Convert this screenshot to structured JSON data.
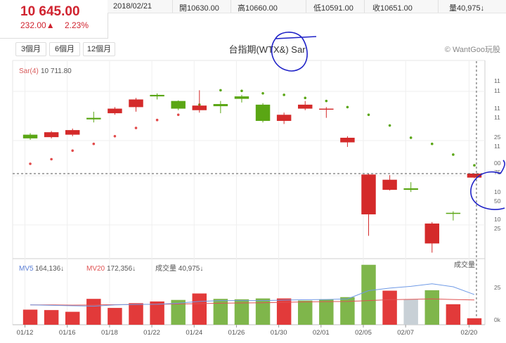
{
  "quote": {
    "price": "10 645.00",
    "change": "232.00▲",
    "change_pct": "2.23%",
    "date": "2018/02/21",
    "open": "開10630.00",
    "high": "高10660.00",
    "low": "低10591.00",
    "close": "收10651.00",
    "volume": "量40,975↓"
  },
  "tabs": [
    {
      "label": "3個月"
    },
    {
      "label": "6個月"
    },
    {
      "label": "12個月"
    }
  ],
  "chart_title": "台指期(WTX&) Sar",
  "brand": "© WantGoo玩股",
  "colors": {
    "up": "#d42a2a",
    "down": "#5aa614",
    "volume_up": "#e23a3a",
    "volume_down": "#7fb64b",
    "volume_neutral": "#c8d0d6",
    "ma5": "#6f9ae6",
    "ma20": "#e05353"
  },
  "chart_data": {
    "type": "candlestick",
    "sar_label": "Sar(4)",
    "sar_value": "10 711.80",
    "volume_labels": {
      "ma5_name": "MV5",
      "ma5": "164,136↓",
      "ma20_name": "MV20",
      "ma20": "172,356↓",
      "vol": "成交量 40,975↓",
      "panel_title": "成交量"
    },
    "x_labels": [
      "01/12",
      "01/16",
      "01/18",
      "01/22",
      "01/24",
      "01/26",
      "01/30",
      "02/01",
      "02/05",
      "02/07",
      "02/20"
    ],
    "price_axis_labels": [
      "11",
      "11",
      "11",
      "11",
      "25",
      "11",
      "00",
      "75",
      "10",
      "50",
      "10",
      "25"
    ],
    "volume_axis_labels": [
      "25",
      "0k"
    ],
    "candles": [
      {
        "o": 11020,
        "c": 11008,
        "h": 11025,
        "l": 11003
      },
      {
        "o": 11012,
        "c": 11028,
        "h": 11032,
        "l": 11008
      },
      {
        "o": 11020,
        "c": 11035,
        "h": 11040,
        "l": 11015
      },
      {
        "o": 11075,
        "c": 11070,
        "h": 11095,
        "l": 11060
      },
      {
        "o": 11090,
        "c": 11105,
        "h": 11110,
        "l": 11085
      },
      {
        "o": 11110,
        "c": 11135,
        "h": 11140,
        "l": 11095
      },
      {
        "o": 11150,
        "c": 11145,
        "h": 11155,
        "l": 11135
      },
      {
        "o": 11130,
        "c": 11105,
        "h": 11132,
        "l": 11100
      },
      {
        "o": 11100,
        "c": 11115,
        "h": 11165,
        "l": 11092
      },
      {
        "o": 11120,
        "c": 11113,
        "h": 11130,
        "l": 11090
      },
      {
        "o": 11145,
        "c": 11137,
        "h": 11150,
        "l": 11125
      },
      {
        "o": 11118,
        "c": 11065,
        "h": 11123,
        "l": 11060
      },
      {
        "o": 11065,
        "c": 11085,
        "h": 11092,
        "l": 11055
      },
      {
        "o": 11105,
        "c": 11118,
        "h": 11130,
        "l": 11100
      },
      {
        "o": 11105,
        "c": 11105,
        "h": 11110,
        "l": 11075
      },
      {
        "o": 10995,
        "c": 11010,
        "h": 11015,
        "l": 10980
      },
      {
        "o": 10760,
        "c": 10890,
        "h": 10892,
        "l": 10690
      },
      {
        "o": 10840,
        "c": 10873,
        "h": 10888,
        "l": 10838
      },
      {
        "o": 10845,
        "c": 10840,
        "h": 10865,
        "l": 10833
      },
      {
        "o": 10665,
        "c": 10730,
        "h": 10735,
        "l": 10635
      },
      {
        "o": 10765,
        "c": 10762,
        "h": 10770,
        "l": 10740
      },
      {
        "o": 10880,
        "c": 10893,
        "h": 10893,
        "l": 10878
      }
    ],
    "sar": [
      10925,
      10940,
      10968,
      10990,
      11015,
      11042,
      11068,
      11085,
      11118,
      11165,
      11163,
      11155,
      11150,
      11140,
      11130,
      11110,
      11085,
      11050,
      11010,
      10990,
      10955,
      10920
    ],
    "volume": [
      {
        "v": 70,
        "d": "up"
      },
      {
        "v": 68,
        "d": "up"
      },
      {
        "v": 60,
        "d": "up"
      },
      {
        "v": 120,
        "d": "up"
      },
      {
        "v": 78,
        "d": "up"
      },
      {
        "v": 100,
        "d": "up"
      },
      {
        "v": 108,
        "d": "up"
      },
      {
        "v": 115,
        "d": "down"
      },
      {
        "v": 145,
        "d": "up"
      },
      {
        "v": 120,
        "d": "down"
      },
      {
        "v": 118,
        "d": "down"
      },
      {
        "v": 122,
        "d": "down"
      },
      {
        "v": 122,
        "d": "up"
      },
      {
        "v": 112,
        "d": "down"
      },
      {
        "v": 118,
        "d": "down"
      },
      {
        "v": 128,
        "d": "down"
      },
      {
        "v": 278,
        "d": "down"
      },
      {
        "v": 158,
        "d": "up"
      },
      {
        "v": 118,
        "d": "neutral"
      },
      {
        "v": 160,
        "d": "down"
      },
      {
        "v": 95,
        "d": "up"
      },
      {
        "v": 30,
        "d": "up"
      }
    ],
    "ma5_line": [
      92,
      90,
      88,
      86,
      92,
      94,
      95,
      100,
      108,
      112,
      112,
      112,
      114,
      116,
      117,
      120,
      158,
      170,
      178,
      190,
      176,
      140
    ],
    "ma20_line": [
      92,
      92,
      91,
      92,
      93,
      94,
      95,
      96,
      98,
      100,
      101,
      102,
      104,
      106,
      107,
      108,
      112,
      116,
      118,
      120,
      117,
      115
    ],
    "current_price": 10893,
    "price_range": [
      10620,
      11260
    ],
    "volume_max": 300
  }
}
